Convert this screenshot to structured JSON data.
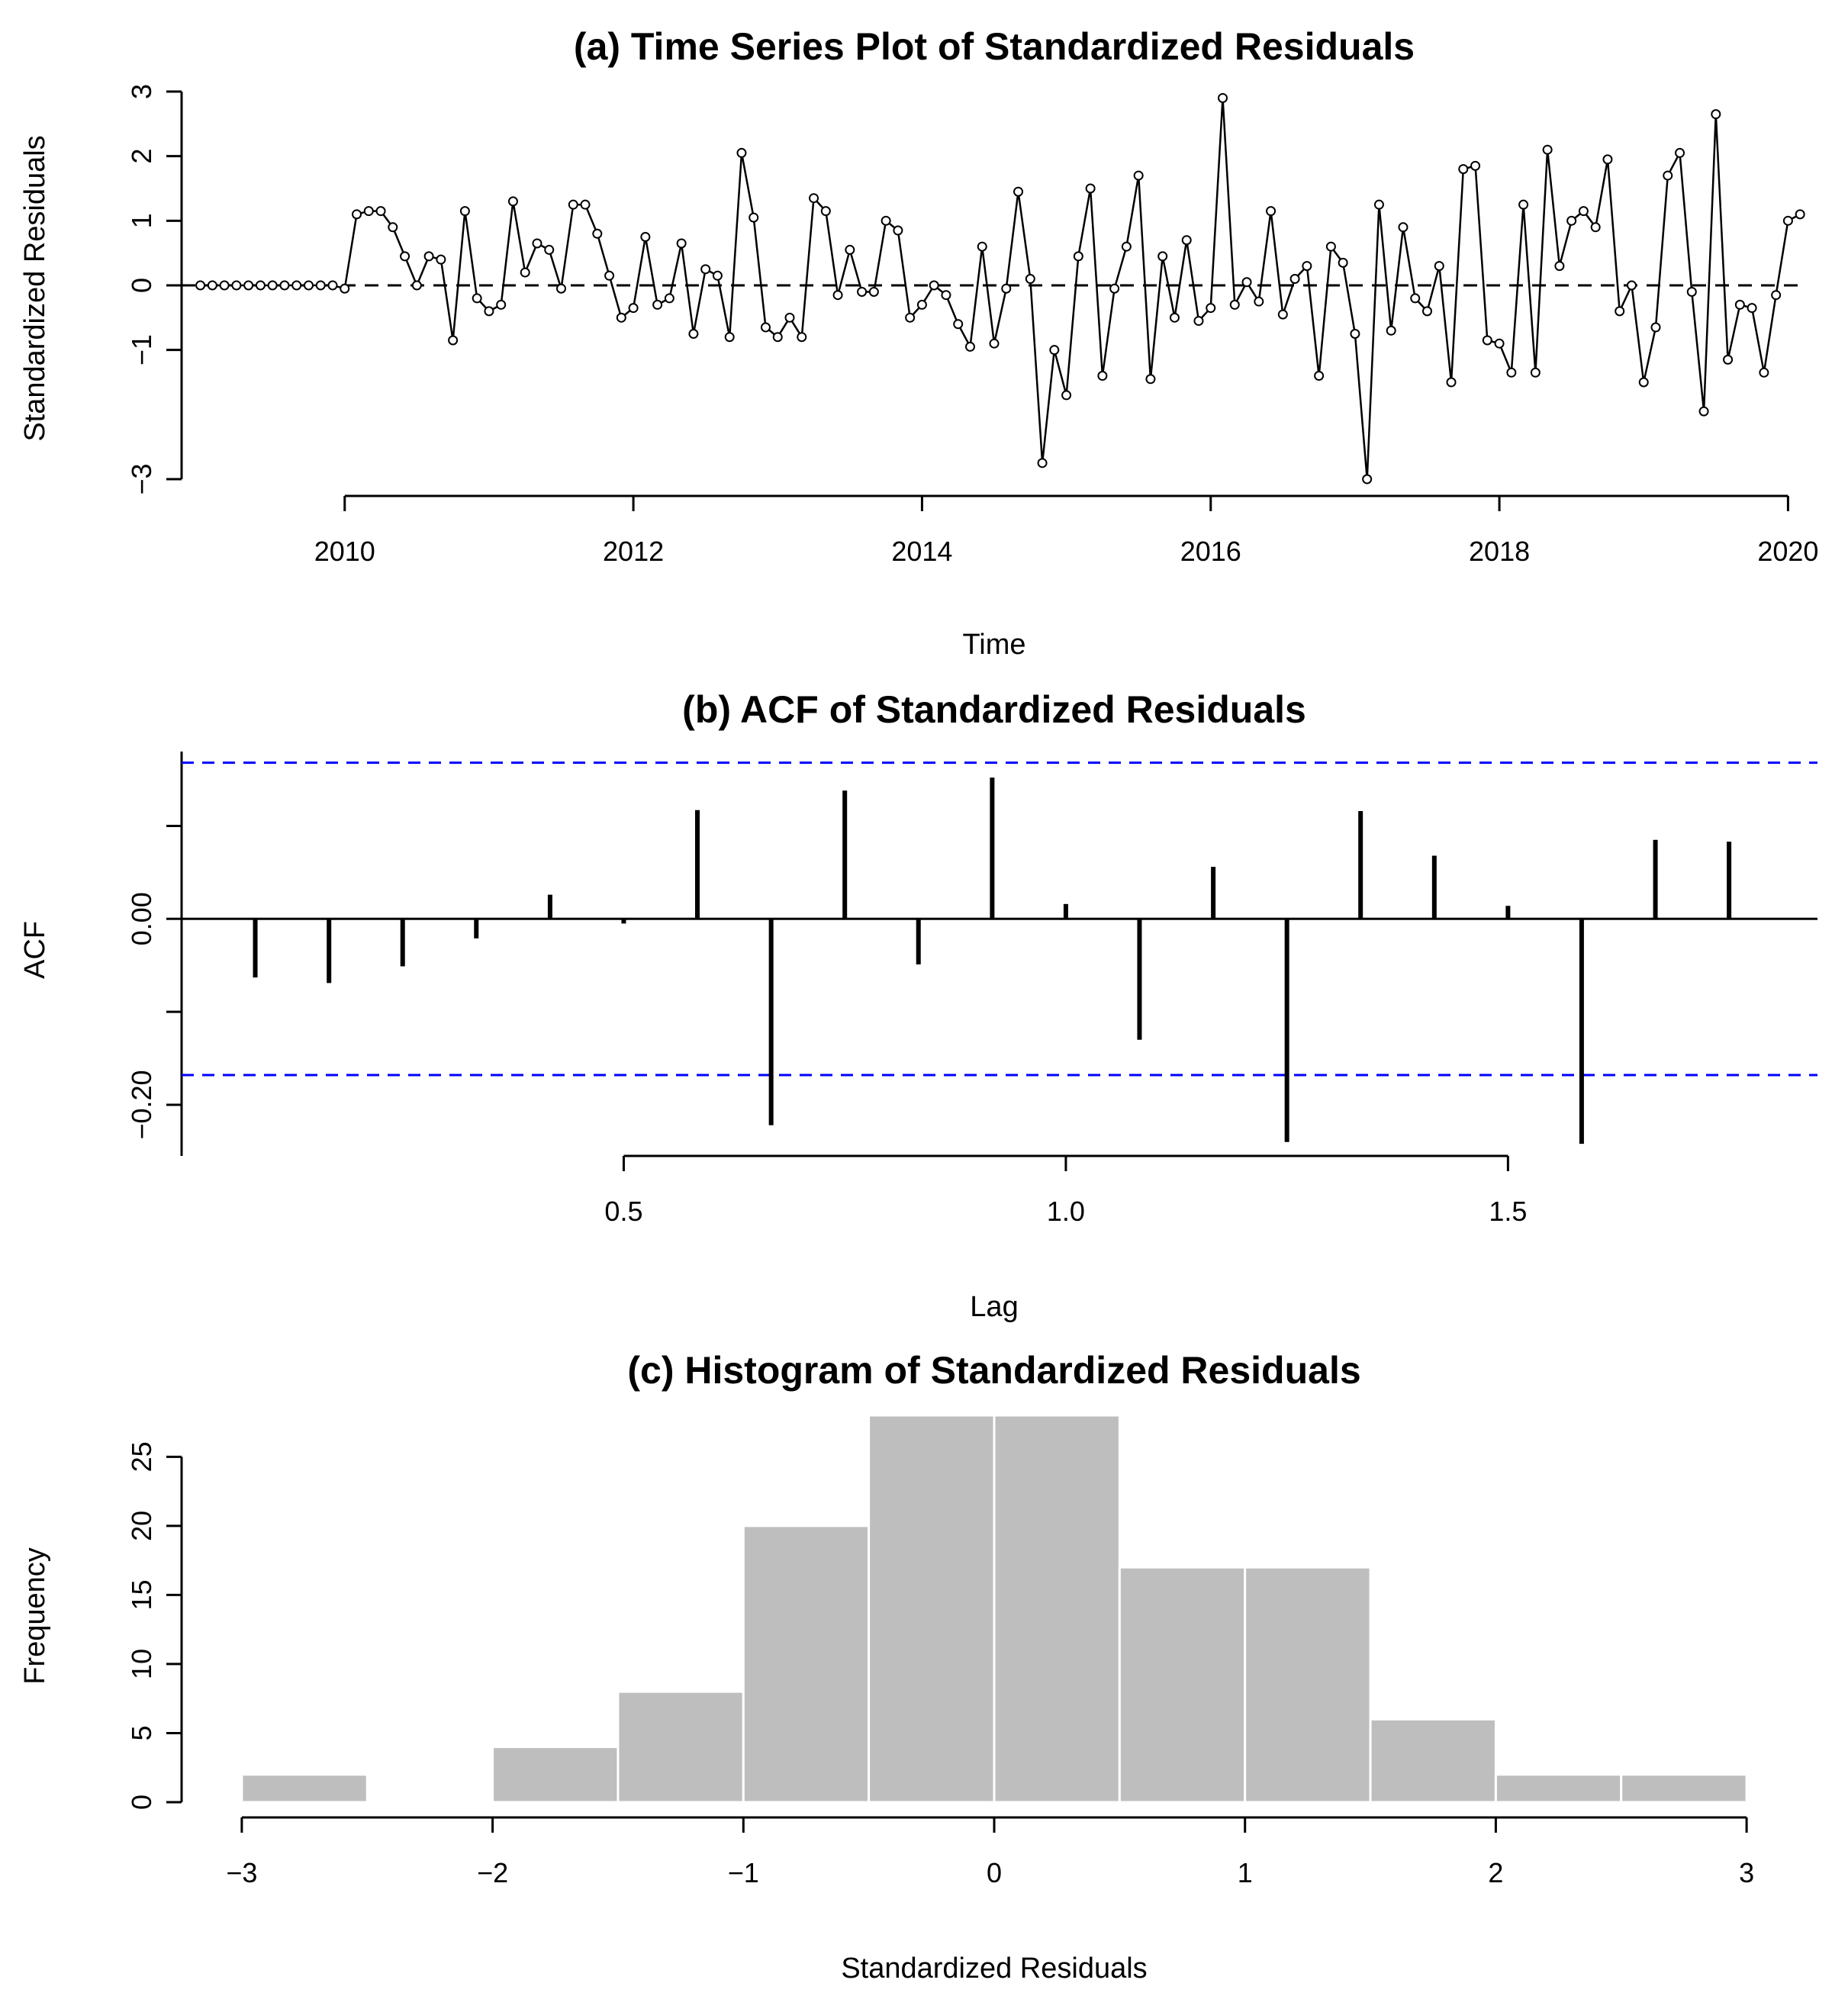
{
  "chart_data": [
    {
      "type": "line",
      "title": "(a) Time Series Plot of Standardized Residuals",
      "xlabel": "Time",
      "ylabel": "Standardized Residuals",
      "xlim": [
        2008.87,
        2020.13
      ],
      "ylim": [
        -3,
        3
      ],
      "xticks": [
        2010,
        2012,
        2014,
        2016,
        2018,
        2020
      ],
      "xtick_labels": [
        "2010",
        "2012",
        "2014",
        "2016",
        "2018",
        "2020"
      ],
      "yticks": [
        -3,
        -1,
        0,
        1,
        2,
        3
      ],
      "ytick_labels": [
        "−3",
        "−1",
        "0",
        "1",
        "2",
        "3"
      ],
      "reference_line": 0,
      "start": 2009,
      "frequency": 12,
      "values": [
        0,
        0,
        0,
        0,
        0,
        0,
        0,
        0,
        0,
        0,
        0,
        0,
        -0.05,
        1.1,
        1.15,
        1.15,
        0.9,
        0.45,
        0.0,
        0.45,
        0.4,
        -0.85,
        1.15,
        -0.2,
        -0.4,
        -0.3,
        1.3,
        0.2,
        0.65,
        0.55,
        -0.05,
        1.25,
        1.25,
        0.8,
        0.15,
        -0.5,
        -0.35,
        0.75,
        -0.3,
        -0.2,
        0.65,
        -0.75,
        0.25,
        0.15,
        -0.8,
        2.05,
        1.05,
        -0.65,
        -0.8,
        -0.5,
        -0.8,
        1.35,
        1.15,
        -0.15,
        0.55,
        -0.1,
        -0.1,
        1.0,
        0.85,
        -0.5,
        -0.3,
        0.0,
        -0.15,
        -0.6,
        -0.95,
        0.6,
        -0.9,
        -0.05,
        1.45,
        0.1,
        -2.75,
        -1.0,
        -1.7,
        0.45,
        1.5,
        -1.4,
        -0.05,
        0.6,
        1.7,
        -1.45,
        0.45,
        -0.5,
        0.7,
        -0.55,
        -0.35,
        2.9,
        -0.3,
        0.05,
        -0.25,
        1.15,
        -0.45,
        0.1,
        0.3,
        -1.4,
        0.6,
        0.35,
        -0.75,
        -3.0,
        1.25,
        -0.7,
        0.9,
        -0.2,
        -0.4,
        0.3,
        -1.5,
        1.8,
        1.85,
        -0.85,
        -0.9,
        -1.35,
        1.25,
        -1.35,
        2.1,
        0.3,
        1.0,
        1.15,
        0.9,
        1.95,
        -0.4,
        0.0,
        -1.5,
        -0.65,
        1.7,
        2.05,
        -0.1,
        -1.95,
        2.65,
        -1.15,
        -0.3,
        -0.35,
        -1.35,
        -0.15,
        1.0,
        1.1
      ]
    },
    {
      "type": "bar",
      "subtype": "acf",
      "title": "(b) ACF of Standardized Residuals",
      "xlabel": "Lag",
      "ylabel": "ACF",
      "xlim": [
        0,
        1.85
      ],
      "ylim": [
        -0.255,
        0.18
      ],
      "xticks": [
        0.5,
        1.0,
        1.5
      ],
      "xtick_labels": [
        "0.5",
        "1.0",
        "1.5"
      ],
      "yticks": [
        -0.2,
        0.0
      ],
      "ytick_labels": [
        "−0.20",
        "0.00"
      ],
      "confidence_band": [
        -0.168,
        0.168
      ],
      "lags": [
        0.0833,
        0.1667,
        0.25,
        0.3333,
        0.4167,
        0.5,
        0.5833,
        0.6667,
        0.75,
        0.8333,
        0.9167,
        1.0,
        1.0833,
        1.1667,
        1.25,
        1.3333,
        1.4167,
        1.5,
        1.5833,
        1.6667,
        1.75
      ],
      "values": [
        -0.063,
        -0.069,
        -0.051,
        -0.021,
        0.026,
        -0.005,
        0.117,
        -0.222,
        0.138,
        -0.049,
        0.152,
        0.016,
        -0.13,
        0.056,
        -0.24,
        0.116,
        0.068,
        0.014,
        -0.242,
        0.085,
        0.083
      ]
    },
    {
      "type": "bar",
      "subtype": "histogram",
      "title": "(c) Histogram of Standardized Residuals",
      "xlabel": "Standardized Residuals",
      "ylabel": "Frequency",
      "xlim": [
        -3,
        3
      ],
      "ylim": [
        0,
        28
      ],
      "xticks": [
        -3,
        -2,
        -1,
        0,
        1,
        2,
        3
      ],
      "xtick_labels": [
        "−3",
        "−2",
        "−1",
        "0",
        "1",
        "2",
        "3"
      ],
      "yticks": [
        0,
        5,
        10,
        15,
        20,
        25
      ],
      "ytick_labels": [
        "0",
        "5",
        "10",
        "15",
        "20",
        "25"
      ],
      "bin_edges": [
        -3,
        -2.5,
        -2,
        -1.5,
        -1,
        -0.5,
        0,
        0.5,
        1,
        1.5,
        2,
        2.5,
        3
      ],
      "values": [
        2,
        0,
        4,
        8,
        20,
        28,
        28,
        17,
        17,
        6,
        2,
        2
      ]
    }
  ]
}
